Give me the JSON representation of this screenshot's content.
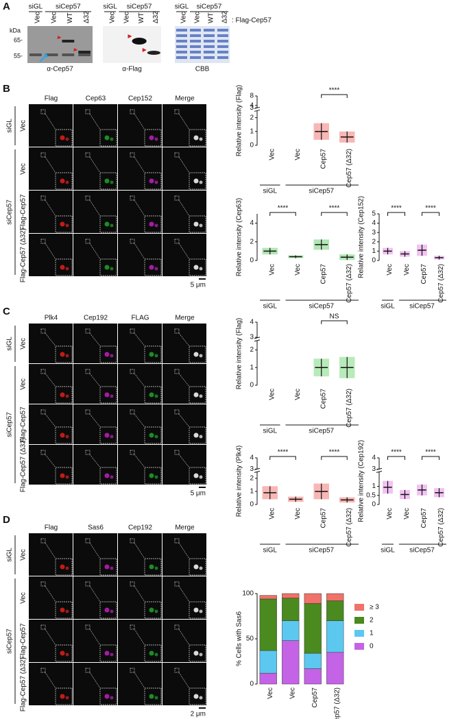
{
  "panel_letters": [
    "A",
    "B",
    "C",
    "D"
  ],
  "blot": {
    "treatment": [
      "siGL",
      "siCep57"
    ],
    "lanes": [
      "Vec",
      "Vec",
      "WT",
      "Δ32"
    ],
    "construct": ": Flag-Cep57",
    "kda": "kDa",
    "markers": [
      "65-",
      "55-"
    ],
    "blots": [
      "α-Cep57",
      "α-Flag",
      "CBB"
    ]
  },
  "micrographs": [
    {
      "channels": [
        "Flag",
        "Cep63",
        "Cep152",
        "Merge"
      ],
      "channel_colors": [
        "#e0201c",
        "#1fa52a",
        "#c21fc2",
        "#000000"
      ],
      "treatment": [
        "siGL",
        "siCep57"
      ],
      "rows": [
        "Vec",
        "Vec",
        "Flag-Cep57",
        "Flag-Cep57 (Δ32)"
      ],
      "scale": "5 μm"
    },
    {
      "channels": [
        "Plk4",
        "Cep192",
        "FLAG",
        "Merge"
      ],
      "channel_colors": [
        "#e0201c",
        "#c21fc2",
        "#1fa52a",
        "#000000"
      ],
      "treatment": [
        "siGL",
        "siCep57"
      ],
      "rows": [
        "Vec",
        "Vec",
        "Flag-Cep57",
        "Flag-Cep57 (Δ32)"
      ],
      "scale": "5 μm"
    },
    {
      "channels": [
        "Flag",
        "Sas6",
        "Cep192",
        "Merge"
      ],
      "channel_colors": [
        "#e0201c",
        "#c21fc2",
        "#1fa52a",
        "#000000"
      ],
      "treatment": [
        "siGL",
        "siCep57"
      ],
      "rows": [
        "Vec",
        "Vec",
        "Flag-Cep57",
        "Flag-Cep57 (Δ32)"
      ],
      "scale": "2 μm"
    }
  ],
  "chart_data": [
    {
      "type": "dot",
      "ylabel": "Relative intensity (Flag)",
      "categories": [
        "Vec",
        "Vec",
        "Cep57",
        "Cep57 (Δ32)"
      ],
      "group_labels": [
        "siGL",
        "siCep57"
      ],
      "values": [
        null,
        null,
        1.0,
        0.6
      ],
      "errors": [
        null,
        null,
        0.6,
        0.4
      ],
      "color": "#e8302a",
      "ylim": [
        0,
        8
      ],
      "ybreak": [
        2.5,
        3
      ],
      "yticks": [
        0,
        1,
        2,
        3,
        4,
        8
      ],
      "annotations": [
        "****"
      ]
    },
    {
      "type": "dot",
      "ylabel": "Relative intensity (Cep63)",
      "categories": [
        "Vec",
        "Vec",
        "Cep57",
        "Cep57 (Δ32)"
      ],
      "group_labels": [
        "siGL",
        "siCep57"
      ],
      "values": [
        1.0,
        0.4,
        1.7,
        0.35
      ],
      "errors": [
        0.35,
        0.15,
        0.55,
        0.3
      ],
      "color": "#22b82a",
      "ylim": [
        0,
        5
      ],
      "yticks": [
        0,
        2,
        4
      ],
      "annotations": [
        "****",
        "****"
      ]
    },
    {
      "type": "dot",
      "ylabel": "Relative intensity (Cep152)",
      "categories": [
        "Vec",
        "Vec",
        "Cep57",
        "Cep57 (Δ32)"
      ],
      "group_labels": [
        "siGL",
        "siCep57"
      ],
      "values": [
        1.0,
        0.7,
        1.1,
        0.3
      ],
      "errors": [
        0.35,
        0.3,
        0.6,
        0.2
      ],
      "color": "#d94fd9",
      "ylim": [
        0,
        5
      ],
      "yticks": [
        0,
        1,
        2,
        3,
        4,
        5
      ],
      "annotations": [
        "****",
        "****"
      ]
    },
    {
      "type": "dot",
      "ylabel": "Relative intensity (Flag)",
      "categories": [
        "Vec",
        "Vec",
        "Cep57",
        "Cep57 (Δ32)"
      ],
      "group_labels": [
        "siGL",
        "siCep57"
      ],
      "values": [
        null,
        null,
        1.0,
        1.0
      ],
      "errors": [
        null,
        null,
        0.5,
        0.6
      ],
      "color": "#34c23a",
      "ylim": [
        0,
        4
      ],
      "ybreak": [
        2.5,
        3
      ],
      "yticks": [
        0,
        1,
        2,
        3,
        4
      ],
      "annotations": [
        "NS"
      ]
    },
    {
      "type": "dot",
      "ylabel": "Relative intensity (Plk4)",
      "categories": [
        "Vec",
        "Vec",
        "Cep57",
        "Cep57 (Δ32)"
      ],
      "group_labels": [
        "siGL",
        "siCep57"
      ],
      "values": [
        0.9,
        0.4,
        1.0,
        0.35
      ],
      "errors": [
        0.5,
        0.2,
        0.6,
        0.2
      ],
      "color": "#e8302a",
      "ylim": [
        0,
        4
      ],
      "ybreak": [
        2.5,
        3
      ],
      "yticks": [
        0,
        1,
        2,
        3,
        4
      ],
      "annotations": [
        "****",
        "****"
      ]
    },
    {
      "type": "dot",
      "ylabel": "Relative intensity (Cep192)",
      "categories": [
        "Vec",
        "Vec",
        "Cep57",
        "Cep57 (Δ32)"
      ],
      "group_labels": [
        "siGL",
        "siCep57"
      ],
      "values": [
        0.95,
        0.55,
        0.8,
        0.65
      ],
      "errors": [
        0.35,
        0.25,
        0.3,
        0.25
      ],
      "color": "#d94fd9",
      "ylim": [
        0,
        4
      ],
      "ybreak": [
        1.8,
        3
      ],
      "yticks": [
        0,
        0.5,
        1,
        3,
        4
      ],
      "annotations": [
        "****",
        "****"
      ]
    },
    {
      "type": "stacked",
      "ylabel": "% Cells with Sas6",
      "categories": [
        "Vec",
        "Vec",
        "Cep57",
        "Cep57 (Δ32)"
      ],
      "group_labels": [
        "siGL",
        "siCep57"
      ],
      "series": [
        {
          "name": "≥ 3",
          "color": "#f07268",
          "values": [
            4,
            5,
            11,
            8
          ]
        },
        {
          "name": "2",
          "color": "#4a8a1e",
          "values": [
            57,
            25,
            55,
            22
          ]
        },
        {
          "name": "1",
          "color": "#5cc8f0",
          "values": [
            25,
            22,
            17,
            35
          ]
        },
        {
          "name": "0",
          "color": "#c463e6",
          "values": [
            12,
            48,
            17,
            35
          ]
        }
      ],
      "ylim": [
        0,
        100
      ],
      "yticks": [
        0,
        50,
        100
      ]
    }
  ]
}
